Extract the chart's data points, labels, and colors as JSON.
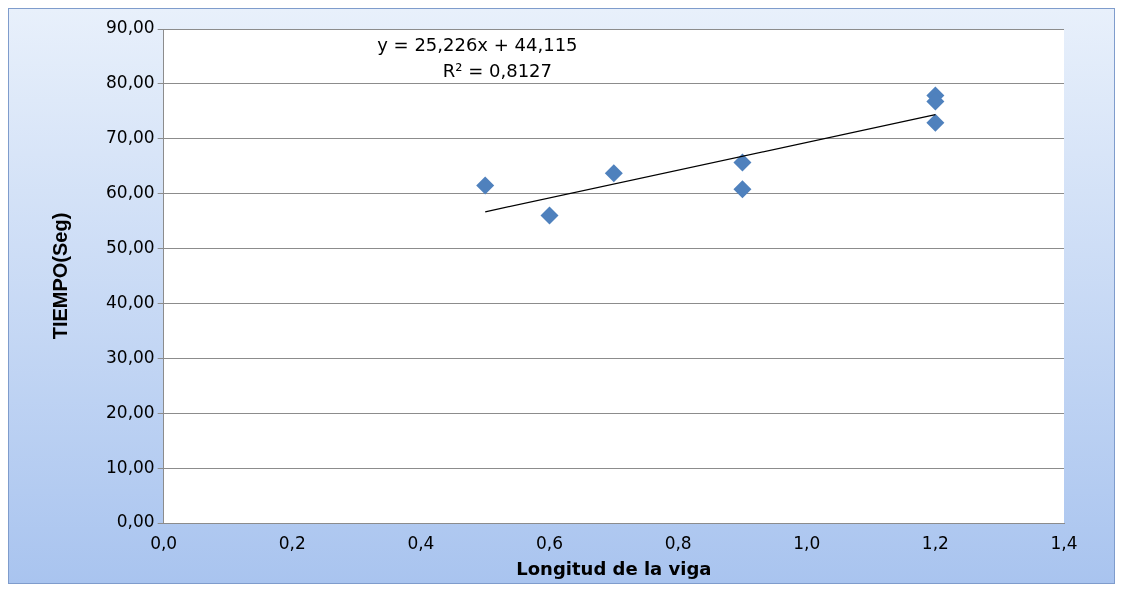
{
  "chart_data": {
    "type": "scatter",
    "xlabel": "Longitud de la viga",
    "ylabel": "TIEMPO(Seg)",
    "annotations": [
      "y = 25,226x + 44,115",
      "R² = 0,8127"
    ],
    "series": [
      {
        "type": "scatter",
        "color": "#4f81bd",
        "x": [
          0.5,
          0.6,
          0.7,
          0.9,
          0.9,
          1.2,
          1.2,
          1.2
        ],
        "values": [
          61.5,
          56.0,
          63.7,
          65.7,
          60.8,
          77.9,
          76.8,
          72.9
        ],
        "marker": "diamond"
      },
      {
        "type": "line",
        "color": "#000000",
        "x": [
          0.5,
          1.2
        ],
        "values": [
          56.7,
          74.4
        ],
        "marker": "none"
      }
    ],
    "xlim": [
      0,
      1.4
    ],
    "xticks": [
      {
        "value": 0,
        "label": "0,0"
      },
      {
        "value": 0.2,
        "label": "0,2"
      },
      {
        "value": 0.4,
        "label": "0,4"
      },
      {
        "value": 0.6,
        "label": "0,6"
      },
      {
        "value": 0.8,
        "label": "0,8"
      },
      {
        "value": 1.0,
        "label": "1,0"
      },
      {
        "value": 1.2,
        "label": "1,2"
      },
      {
        "value": 1.4,
        "label": "1,4"
      }
    ],
    "ylim": [
      0,
      90
    ],
    "yticks": [
      {
        "value": 0,
        "label": "0,00"
      },
      {
        "value": 10,
        "label": "10,00"
      },
      {
        "value": 20,
        "label": "20,00"
      },
      {
        "value": 30,
        "label": "30,00"
      },
      {
        "value": 40,
        "label": "40,00"
      },
      {
        "value": 50,
        "label": "50,00"
      },
      {
        "value": 60,
        "label": "60,00"
      },
      {
        "value": 70,
        "label": "70,00"
      },
      {
        "value": 80,
        "label": "80,00"
      },
      {
        "value": 90,
        "label": "90,00"
      }
    ],
    "grid": "y",
    "legend": false
  }
}
